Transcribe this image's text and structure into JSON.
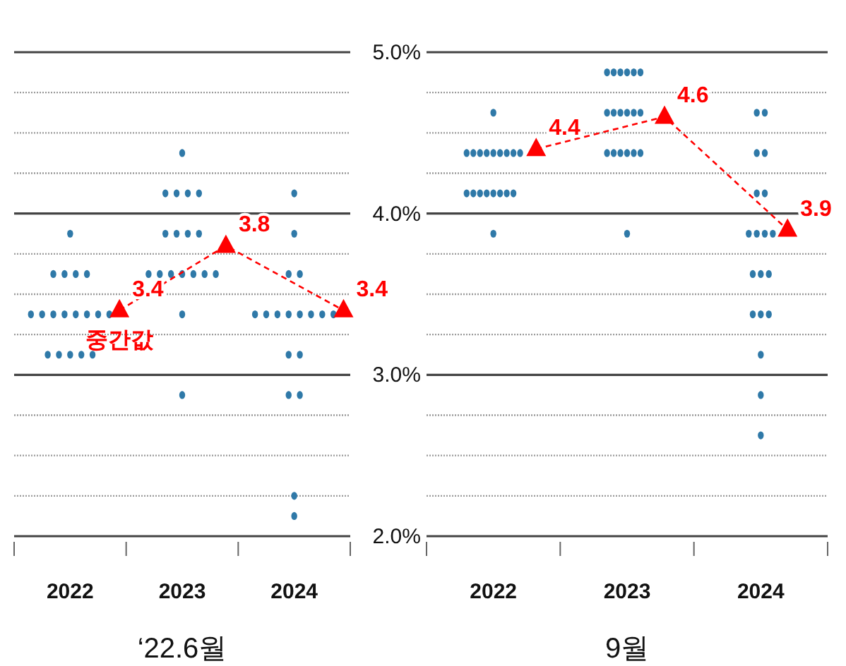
{
  "chart_data": [
    {
      "type": "scatter",
      "xlabel": "‘22.6월",
      "xlim": [
        2021.5,
        2024.5
      ],
      "xticks": [
        {
          "value": 2021.5,
          "label": null
        },
        2022,
        {
          "value": 2022.5,
          "label": null
        },
        2023,
        {
          "value": 2023.5,
          "label": null
        },
        2024,
        {
          "value": 2024.5,
          "label": null
        }
      ],
      "ylim": [
        2,
        5
      ],
      "grid": "y",
      "tick_labels": "x",
      "yticks": [
        2,
        {
          "value": 2.25,
          "label": null
        },
        {
          "value": 2.5,
          "label": null
        },
        {
          "value": 2.75,
          "label": null
        },
        3,
        {
          "value": 3.25,
          "label": null
        },
        {
          "value": 3.5,
          "label": null
        },
        {
          "value": 3.75,
          "label": null
        },
        4,
        {
          "value": 4.25,
          "label": null
        },
        {
          "value": 4.5,
          "label": null
        },
        {
          "value": 4.75,
          "label": null
        },
        5
      ],
      "series": [
        {
          "type": "scatter",
          "marker": "circle",
          "color": "#2f79a8",
          "x": [
            2022,
            2021.85,
            2021.95,
            2022.05,
            2022.15,
            2021.65,
            2021.75,
            2021.85,
            2021.95,
            2022.05,
            2022.15,
            2022.25,
            2022.35,
            2021.8,
            2021.9,
            2022,
            2022.1,
            2022.2,
            2023,
            2022.85,
            2022.95,
            2023.05,
            2023.15,
            2022.85,
            2022.95,
            2023.05,
            2023.15,
            2022.7,
            2022.8,
            2022.9,
            2023,
            2023.1,
            2023.2,
            2023.3,
            2023,
            2023,
            2024,
            2024,
            2023.95,
            2024.05,
            2023.65,
            2023.75,
            2023.85,
            2023.95,
            2024.05,
            2024.15,
            2024.25,
            2024.35,
            2023.95,
            2024.05,
            2023.95,
            2024.05,
            2024,
            2024
          ],
          "values": [
            3.875,
            3.625,
            3.625,
            3.625,
            3.625,
            3.375,
            3.375,
            3.375,
            3.375,
            3.375,
            3.375,
            3.375,
            3.375,
            3.125,
            3.125,
            3.125,
            3.125,
            3.125,
            4.375,
            4.125,
            4.125,
            4.125,
            4.125,
            3.875,
            3.875,
            3.875,
            3.875,
            3.625,
            3.625,
            3.625,
            3.625,
            3.625,
            3.625,
            3.625,
            3.375,
            2.875,
            4.125,
            3.875,
            3.625,
            3.625,
            3.375,
            3.375,
            3.375,
            3.375,
            3.375,
            3.375,
            3.375,
            3.375,
            3.125,
            3.125,
            2.875,
            2.875,
            2.25,
            2.125
          ]
        },
        {
          "type": "line",
          "marker": "triangle",
          "line_style": "dashed",
          "color": "#ff0000",
          "x": [
            2022.44,
            2023.39,
            2024.44
          ],
          "values": [
            3.4,
            3.8,
            3.4
          ],
          "value_labels": [
            "3.4",
            "3.8",
            "3.4"
          ]
        }
      ],
      "annotations": [
        {
          "text": "중간값",
          "x": 2022.44,
          "y": 3.4
        }
      ]
    },
    {
      "type": "scatter",
      "xlabel": "9월",
      "xlim": [
        2021.5,
        2024.5
      ],
      "xticks": [
        {
          "value": 2021.5,
          "label": null
        },
        2022,
        {
          "value": 2022.5,
          "label": null
        },
        2023,
        {
          "value": 2023.5,
          "label": null
        },
        2024,
        {
          "value": 2024.5,
          "label": null
        }
      ],
      "ylim": [
        2,
        5
      ],
      "grid": "y",
      "yticks": [
        {
          "value": 2,
          "label": "2.0%"
        },
        {
          "value": 2.25,
          "label": null
        },
        {
          "value": 2.5,
          "label": null
        },
        {
          "value": 2.75,
          "label": null
        },
        {
          "value": 3,
          "label": "3.0%"
        },
        {
          "value": 3.25,
          "label": null
        },
        {
          "value": 3.5,
          "label": null
        },
        {
          "value": 3.75,
          "label": null
        },
        {
          "value": 4,
          "label": "4.0%"
        },
        {
          "value": 4.25,
          "label": null
        },
        {
          "value": 4.5,
          "label": null
        },
        {
          "value": 4.75,
          "label": null
        },
        {
          "value": 5,
          "label": "5.0%"
        }
      ],
      "series": [
        {
          "type": "scatter",
          "marker": "circle",
          "color": "#2f79a8",
          "x": [
            2022,
            2021.8,
            2021.85,
            2021.9,
            2021.95,
            2022,
            2022.05,
            2022.1,
            2022.15,
            2022.2,
            2021.8,
            2021.85,
            2021.9,
            2021.95,
            2022,
            2022.05,
            2022.1,
            2022.15,
            2022,
            2022.85,
            2022.9,
            2022.95,
            2023,
            2023.05,
            2023.1,
            2022.85,
            2022.9,
            2022.95,
            2023,
            2023.05,
            2023.1,
            2022.85,
            2022.9,
            2022.95,
            2023,
            2023.05,
            2023.1,
            2023,
            2023.97,
            2024.03,
            2023.97,
            2024.03,
            2023.97,
            2024.03,
            2023.91,
            2023.97,
            2024.03,
            2024.09,
            2023.94,
            2024,
            2024.06,
            2023.94,
            2024,
            2024.06,
            2024,
            2024,
            2024
          ],
          "values": [
            4.625,
            4.375,
            4.375,
            4.375,
            4.375,
            4.375,
            4.375,
            4.375,
            4.375,
            4.375,
            4.125,
            4.125,
            4.125,
            4.125,
            4.125,
            4.125,
            4.125,
            4.125,
            3.875,
            4.875,
            4.875,
            4.875,
            4.875,
            4.875,
            4.875,
            4.625,
            4.625,
            4.625,
            4.625,
            4.625,
            4.625,
            4.375,
            4.375,
            4.375,
            4.375,
            4.375,
            4.375,
            3.875,
            4.625,
            4.625,
            4.375,
            4.375,
            4.125,
            4.125,
            3.875,
            3.875,
            3.875,
            3.875,
            3.625,
            3.625,
            3.625,
            3.375,
            3.375,
            3.375,
            3.125,
            2.875,
            2.625
          ]
        },
        {
          "type": "line",
          "marker": "triangle",
          "line_style": "dashed",
          "color": "#ff0000",
          "x": [
            2022.32,
            2023.28,
            2024.2
          ],
          "values": [
            4.4,
            4.6,
            3.9
          ],
          "value_labels": [
            "4.4",
            "4.6",
            "3.9"
          ]
        }
      ]
    }
  ]
}
